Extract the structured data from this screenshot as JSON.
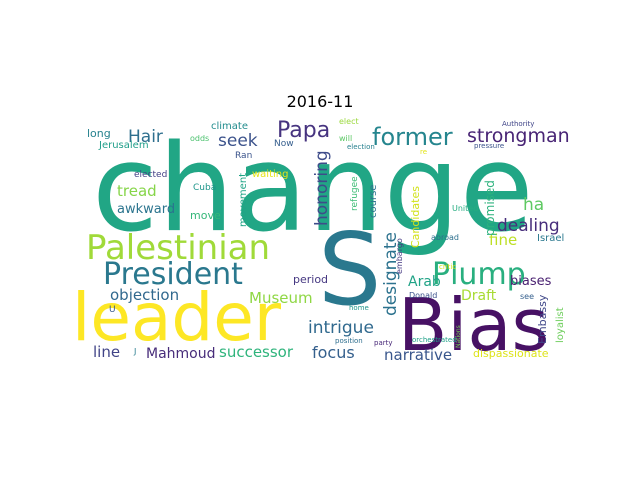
{
  "title": "2016-11",
  "words": [
    {
      "text": "change",
      "color": "#21a685"
    },
    {
      "text": "S",
      "color": "#2a788e"
    },
    {
      "text": "Bias",
      "color": "#471164"
    },
    {
      "text": "leader",
      "color": "#fde725"
    },
    {
      "text": "Palestinian",
      "color": "#a0da39"
    },
    {
      "text": "President",
      "color": "#2a788e"
    },
    {
      "text": "Plump",
      "color": "#29af7f"
    },
    {
      "text": "former",
      "color": "#25858e"
    },
    {
      "text": "Papa",
      "color": "#46337f"
    },
    {
      "text": "strongman",
      "color": "#482475"
    },
    {
      "text": "Hair",
      "color": "#2e6f8e"
    },
    {
      "text": "seek",
      "color": "#3b528b"
    },
    {
      "text": "honoring",
      "color": "#3e4c8a"
    },
    {
      "text": "designate",
      "color": "#2c728e"
    },
    {
      "text": "dealing",
      "color": "#472d7b"
    },
    {
      "text": "intrigue",
      "color": "#30698e"
    },
    {
      "text": "Museum",
      "color": "#8fd744"
    },
    {
      "text": "objection",
      "color": "#31688e"
    },
    {
      "text": "tread",
      "color": "#86d549"
    },
    {
      "text": "awkward",
      "color": "#2b748e"
    },
    {
      "text": "focus",
      "color": "#35608d"
    },
    {
      "text": "successor",
      "color": "#2fb47c"
    },
    {
      "text": "Mahmoud",
      "color": "#472c7a"
    },
    {
      "text": "line",
      "color": "#414487"
    },
    {
      "text": "narrative",
      "color": "#39568c"
    },
    {
      "text": "ha",
      "color": "#5ec962"
    },
    {
      "text": "fine",
      "color": "#bddf26"
    },
    {
      "text": "Arab",
      "color": "#20a386"
    },
    {
      "text": "Draft",
      "color": "#a8db34"
    },
    {
      "text": "biases",
      "color": "#481f70"
    },
    {
      "text": "promised",
      "color": "#2db27d"
    },
    {
      "text": "Candidates",
      "color": "#d2e21b"
    },
    {
      "text": "Embassy",
      "color": "#3f4788"
    },
    {
      "text": "dispassionate",
      "color": "#dde318"
    },
    {
      "text": "loyalist",
      "color": "#6ccd5a"
    },
    {
      "text": "Israel",
      "color": "#2a788e"
    },
    {
      "text": "movement",
      "color": "#20a486"
    },
    {
      "text": "period",
      "color": "#453781"
    },
    {
      "text": "move",
      "color": "#35b779"
    },
    {
      "text": "course",
      "color": "#2c728e"
    },
    {
      "text": "refugee",
      "color": "#3dbc74"
    },
    {
      "text": "waiting",
      "color": "#e5e419"
    },
    {
      "text": "long",
      "color": "#26828e"
    },
    {
      "text": "Jerusalem",
      "color": "#1f9e89"
    },
    {
      "text": "climate",
      "color": "#228c8d"
    },
    {
      "text": "odds",
      "color": "#4ac16d"
    },
    {
      "text": "Ran",
      "color": "#3a538b"
    },
    {
      "text": "Now",
      "color": "#355e8d"
    },
    {
      "text": "elected",
      "color": "#424186"
    },
    {
      "text": "Cuba",
      "color": "#1f968b"
    },
    {
      "text": "elect",
      "color": "#9bd93c"
    },
    {
      "text": "will",
      "color": "#5ac864"
    },
    {
      "text": "election",
      "color": "#27808e"
    },
    {
      "text": "Authority",
      "color": "#404588"
    },
    {
      "text": "pressure",
      "color": "#3b528b"
    },
    {
      "text": "United",
      "color": "#26ad81"
    },
    {
      "text": "abroad",
      "color": "#2d708e"
    },
    {
      "text": "embargo",
      "color": "#453882"
    },
    {
      "text": "critic",
      "color": "#d5e21a"
    },
    {
      "text": "home",
      "color": "#1f958b"
    },
    {
      "text": "Donald",
      "color": "#3b528b"
    },
    {
      "text": "see",
      "color": "#355f8d"
    },
    {
      "text": "orchestrated",
      "color": "#1fa088"
    },
    {
      "text": "position",
      "color": "#2e6e8e"
    },
    {
      "text": "party",
      "color": "#482878"
    },
    {
      "text": "Nations",
      "color": "#77d153"
    },
    {
      "text": "re",
      "color": "#e2e418"
    },
    {
      "text": "U",
      "color": "#38598c"
    },
    {
      "text": "J",
      "color": "#287c8e"
    }
  ]
}
